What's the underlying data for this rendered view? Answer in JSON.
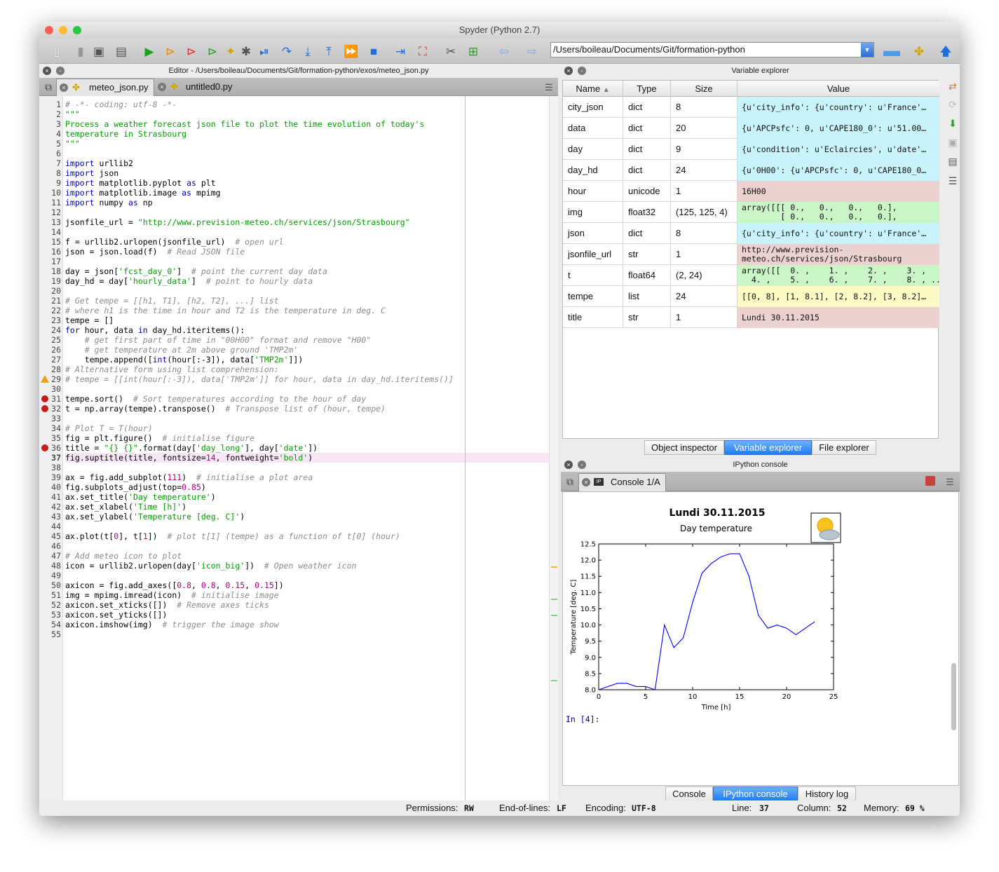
{
  "app": {
    "title": "Spyder (Python 2.7)"
  },
  "toolbar": {
    "path": "/Users/boileau/Documents/Git/formation-python"
  },
  "editor": {
    "header": "Editor - /Users/boileau/Documents/Git/formation-python/exos/meteo_json.py",
    "tabs": [
      {
        "label": "meteo_json.py"
      },
      {
        "label": "untitled0.py"
      }
    ],
    "lines": [
      [
        {
          "c": "cm",
          "t": "# -*- coding: utf-8 -*-"
        }
      ],
      [
        {
          "c": "st",
          "t": "\"\"\""
        }
      ],
      [
        {
          "c": "st",
          "t": "Process a weather forecast json file to plot the time evolution of today's"
        }
      ],
      [
        {
          "c": "st",
          "t": "temperature in Strasbourg"
        }
      ],
      [
        {
          "c": "st",
          "t": "\"\"\""
        }
      ],
      [],
      [
        {
          "c": "kw",
          "t": "import"
        },
        {
          "t": " urllib2"
        }
      ],
      [
        {
          "c": "kw",
          "t": "import"
        },
        {
          "t": " json"
        }
      ],
      [
        {
          "c": "kw",
          "t": "import"
        },
        {
          "t": " matplotlib.pyplot "
        },
        {
          "c": "kw",
          "t": "as"
        },
        {
          "t": " plt"
        }
      ],
      [
        {
          "c": "kw",
          "t": "import"
        },
        {
          "t": " matplotlib.image "
        },
        {
          "c": "kw",
          "t": "as"
        },
        {
          "t": " mpimg"
        }
      ],
      [
        {
          "c": "kw",
          "t": "import"
        },
        {
          "t": " numpy "
        },
        {
          "c": "kw",
          "t": "as"
        },
        {
          "t": " np"
        }
      ],
      [],
      [
        {
          "t": "jsonfile_url = "
        },
        {
          "c": "st",
          "t": "\"http://www.prevision-meteo.ch/services/json/Strasbourg\""
        }
      ],
      [],
      [
        {
          "t": "f = urllib2.urlopen(jsonfile_url)  "
        },
        {
          "c": "cm",
          "t": "# open url"
        }
      ],
      [
        {
          "t": "json = json.load(f)  "
        },
        {
          "c": "cm",
          "t": "# Read JSON file"
        }
      ],
      [],
      [
        {
          "t": "day = json["
        },
        {
          "c": "st",
          "t": "'fcst_day_0'"
        },
        {
          "t": "]  "
        },
        {
          "c": "cm",
          "t": "# point the current day data"
        }
      ],
      [
        {
          "t": "day_hd = day["
        },
        {
          "c": "st",
          "t": "'hourly_data'"
        },
        {
          "t": "]  "
        },
        {
          "c": "cm",
          "t": "# point to hourly data"
        }
      ],
      [],
      [
        {
          "c": "cm",
          "t": "# Get tempe = [[h1, T1], [h2, T2], ...] list"
        }
      ],
      [
        {
          "c": "cm",
          "t": "# where h1 is the time in hour and T2 is the temperature in deg. C"
        }
      ],
      [
        {
          "t": "tempe = []"
        }
      ],
      [
        {
          "c": "kw",
          "t": "for"
        },
        {
          "t": " hour, data "
        },
        {
          "c": "kw",
          "t": "in"
        },
        {
          "t": " day_hd.iteritems():"
        }
      ],
      [
        {
          "t": "    "
        },
        {
          "c": "cm",
          "t": "# get first part of time in \"00H00\" format and remove \"H00\""
        }
      ],
      [
        {
          "t": "    "
        },
        {
          "c": "cm",
          "t": "# get temperature at 2m above ground 'TMP2m'"
        }
      ],
      [
        {
          "t": "    tempe.append(["
        },
        {
          "c": "kw",
          "t": "int"
        },
        {
          "t": "(hour[:-3]), data["
        },
        {
          "c": "st",
          "t": "'TMP2m'"
        },
        {
          "t": "]])"
        }
      ],
      [
        {
          "c": "cm",
          "t": "# Alternative form using list comprehension:"
        }
      ],
      [
        {
          "c": "cm",
          "t": "# tempe = [[int(hour[:-3]), data['TMP2m']] for hour, data in day_hd.iteritems()]"
        }
      ],
      [],
      [
        {
          "t": "tempe.sort()  "
        },
        {
          "c": "cm",
          "t": "# Sort temperatures according to the hour of day"
        }
      ],
      [
        {
          "t": "t = np.array(tempe).transpose()  "
        },
        {
          "c": "cm",
          "t": "# Transpose list of (hour, tempe)"
        }
      ],
      [],
      [
        {
          "c": "cm",
          "t": "# Plot T = T(hour)"
        }
      ],
      [
        {
          "t": "fig = plt.figure()  "
        },
        {
          "c": "cm",
          "t": "# initialise figure"
        }
      ],
      [
        {
          "t": "title = "
        },
        {
          "c": "st",
          "t": "\"{} {}\""
        },
        {
          "t": ".format(day["
        },
        {
          "c": "st",
          "t": "'day_long'"
        },
        {
          "t": "], day["
        },
        {
          "c": "st",
          "t": "'date'"
        },
        {
          "t": "])"
        }
      ],
      [
        {
          "t": "fig.suptitle(title, fontsize="
        },
        {
          "c": "nm",
          "t": "14"
        },
        {
          "t": ", fontweight="
        },
        {
          "c": "st",
          "t": "'bold'"
        },
        {
          "t": ")"
        }
      ],
      [],
      [
        {
          "t": "ax = fig.add_subplot("
        },
        {
          "c": "nm",
          "t": "111"
        },
        {
          "t": ")  "
        },
        {
          "c": "cm",
          "t": "# initialise a plot area"
        }
      ],
      [
        {
          "t": "fig.subplots_adjust(top="
        },
        {
          "c": "nm",
          "t": "0.85"
        },
        {
          "t": ")"
        }
      ],
      [
        {
          "t": "ax.set_title("
        },
        {
          "c": "st",
          "t": "'Day temperature'"
        },
        {
          "t": ")"
        }
      ],
      [
        {
          "t": "ax.set_xlabel("
        },
        {
          "c": "st",
          "t": "'Time [h]'"
        },
        {
          "t": ")"
        }
      ],
      [
        {
          "t": "ax.set_ylabel("
        },
        {
          "c": "st",
          "t": "'Temperature [deg. C]'"
        },
        {
          "t": ")"
        }
      ],
      [],
      [
        {
          "t": "ax.plot(t["
        },
        {
          "c": "nm",
          "t": "0"
        },
        {
          "t": "], t["
        },
        {
          "c": "nm",
          "t": "1"
        },
        {
          "t": "])  "
        },
        {
          "c": "cm",
          "t": "# plot t[1] (tempe) as a function of t[0] (hour)"
        }
      ],
      [],
      [
        {
          "c": "cm",
          "t": "# Add meteo icon to plot"
        }
      ],
      [
        {
          "t": "icon = urllib2.urlopen(day["
        },
        {
          "c": "st",
          "t": "'icon_big'"
        },
        {
          "t": "])  "
        },
        {
          "c": "cm",
          "t": "# Open weather icon"
        }
      ],
      [],
      [
        {
          "t": "axicon = fig.add_axes(["
        },
        {
          "c": "nm",
          "t": "0.8"
        },
        {
          "t": ", "
        },
        {
          "c": "nm",
          "t": "0.8"
        },
        {
          "t": ", "
        },
        {
          "c": "nm",
          "t": "0.15"
        },
        {
          "t": ", "
        },
        {
          "c": "nm",
          "t": "0.15"
        },
        {
          "t": "])"
        }
      ],
      [
        {
          "t": "img = mpimg.imread(icon)  "
        },
        {
          "c": "cm",
          "t": "# initialise image"
        }
      ],
      [
        {
          "t": "axicon.set_xticks([])  "
        },
        {
          "c": "cm",
          "t": "# Remove axes ticks"
        }
      ],
      [
        {
          "t": "axicon.set_yticks([])"
        }
      ],
      [
        {
          "t": "axicon.imshow(img)  "
        },
        {
          "c": "cm",
          "t": "# trigger the image show"
        }
      ],
      []
    ],
    "breakpoints": [
      31,
      32,
      36
    ],
    "warnings": [
      29
    ],
    "current_line": 37
  },
  "variable_explorer": {
    "header": "Variable explorer",
    "columns": [
      "Name",
      "Type",
      "Size",
      "Value"
    ],
    "rows": [
      {
        "name": "city_json",
        "type": "dict",
        "size": "8",
        "value": "{u'city_info': {u'country': u'France'…",
        "color": "#c9f3fa"
      },
      {
        "name": "data",
        "type": "dict",
        "size": "20",
        "value": "{u'APCPsfc': 0, u'CAPE180_0': u'51.00…",
        "color": "#c9f3fa"
      },
      {
        "name": "day",
        "type": "dict",
        "size": "9",
        "value": "{u'condition': u'Eclaircies', u'date'…",
        "color": "#c9f3fa"
      },
      {
        "name": "day_hd",
        "type": "dict",
        "size": "24",
        "value": "{u'0H00': {u'APCPsfc': 0, u'CAPE180_0…",
        "color": "#c9f3fa"
      },
      {
        "name": "hour",
        "type": "unicode",
        "size": "1",
        "value": "16H00",
        "color": "#ecd1d1"
      },
      {
        "name": "img",
        "type": "float32",
        "size": "(125, 125, 4)",
        "value": "array([[[ 0.,   0.,   0.,   0.],\n        [ 0.,   0.,   0.,   0.],",
        "color": "#caf5c6"
      },
      {
        "name": "json",
        "type": "dict",
        "size": "8",
        "value": "{u'city_info': {u'country': u'France'…",
        "color": "#c9f3fa"
      },
      {
        "name": "jsonfile_url",
        "type": "str",
        "size": "1",
        "value": "http://www.prevision-\nmeteo.ch/services/json/Strasbourg",
        "color": "#ecd1d1"
      },
      {
        "name": "t",
        "type": "float64",
        "size": "(2, 24)",
        "value": "array([[  0. ,    1. ,    2. ,    3. ,\n  4. ,    5. ,    6. ,    7. ,    8. , ...",
        "color": "#caf5c6"
      },
      {
        "name": "tempe",
        "type": "list",
        "size": "24",
        "value": "[[0, 8], [1, 8.1], [2, 8.2], [3, 8.2]…",
        "color": "#fdfbc5"
      },
      {
        "name": "title",
        "type": "str",
        "size": "1",
        "value": "Lundi 30.11.2015",
        "color": "#ecd1d1"
      }
    ],
    "tabs": [
      "Object inspector",
      "Variable explorer",
      "File explorer"
    ]
  },
  "console": {
    "header": "IPython console",
    "tab": "Console 1/A",
    "prompt": "In [4]:",
    "tabs": [
      "Console",
      "IPython console",
      "History log"
    ]
  },
  "chart_data": {
    "type": "line",
    "title": "Lundi 30.11.2015",
    "subtitle": "Day temperature",
    "xlabel": "Time [h]",
    "ylabel": "Temperature [deg. C]",
    "xlim": [
      0,
      25
    ],
    "ylim": [
      8.0,
      12.5
    ],
    "xticks": [
      "0",
      "5",
      "10",
      "15",
      "20",
      "25"
    ],
    "yticks": [
      "8.0",
      "8.5",
      "9.0",
      "9.5",
      "10.0",
      "10.5",
      "11.0",
      "11.5",
      "12.0",
      "12.5"
    ],
    "x": [
      0,
      1,
      2,
      3,
      4,
      5,
      6,
      7,
      8,
      9,
      10,
      11,
      12,
      13,
      14,
      15,
      16,
      17,
      18,
      19,
      20,
      21,
      22,
      23
    ],
    "y": [
      8.0,
      8.1,
      8.2,
      8.2,
      8.1,
      8.1,
      8.0,
      10.0,
      9.3,
      9.6,
      10.7,
      11.6,
      11.9,
      12.1,
      12.2,
      12.2,
      11.5,
      10.3,
      9.9,
      10.0,
      9.9,
      9.7,
      9.9,
      10.1
    ],
    "color": "#0000ff"
  },
  "statusbar": {
    "permissions_label": "Permissions:",
    "permissions": "RW",
    "eol_label": "End-of-lines:",
    "eol": "LF",
    "encoding_label": "Encoding:",
    "encoding": "UTF-8",
    "line_label": "Line:",
    "line": "37",
    "column_label": "Column:",
    "column": "52",
    "memory_label": "Memory:",
    "memory": "69 %"
  }
}
